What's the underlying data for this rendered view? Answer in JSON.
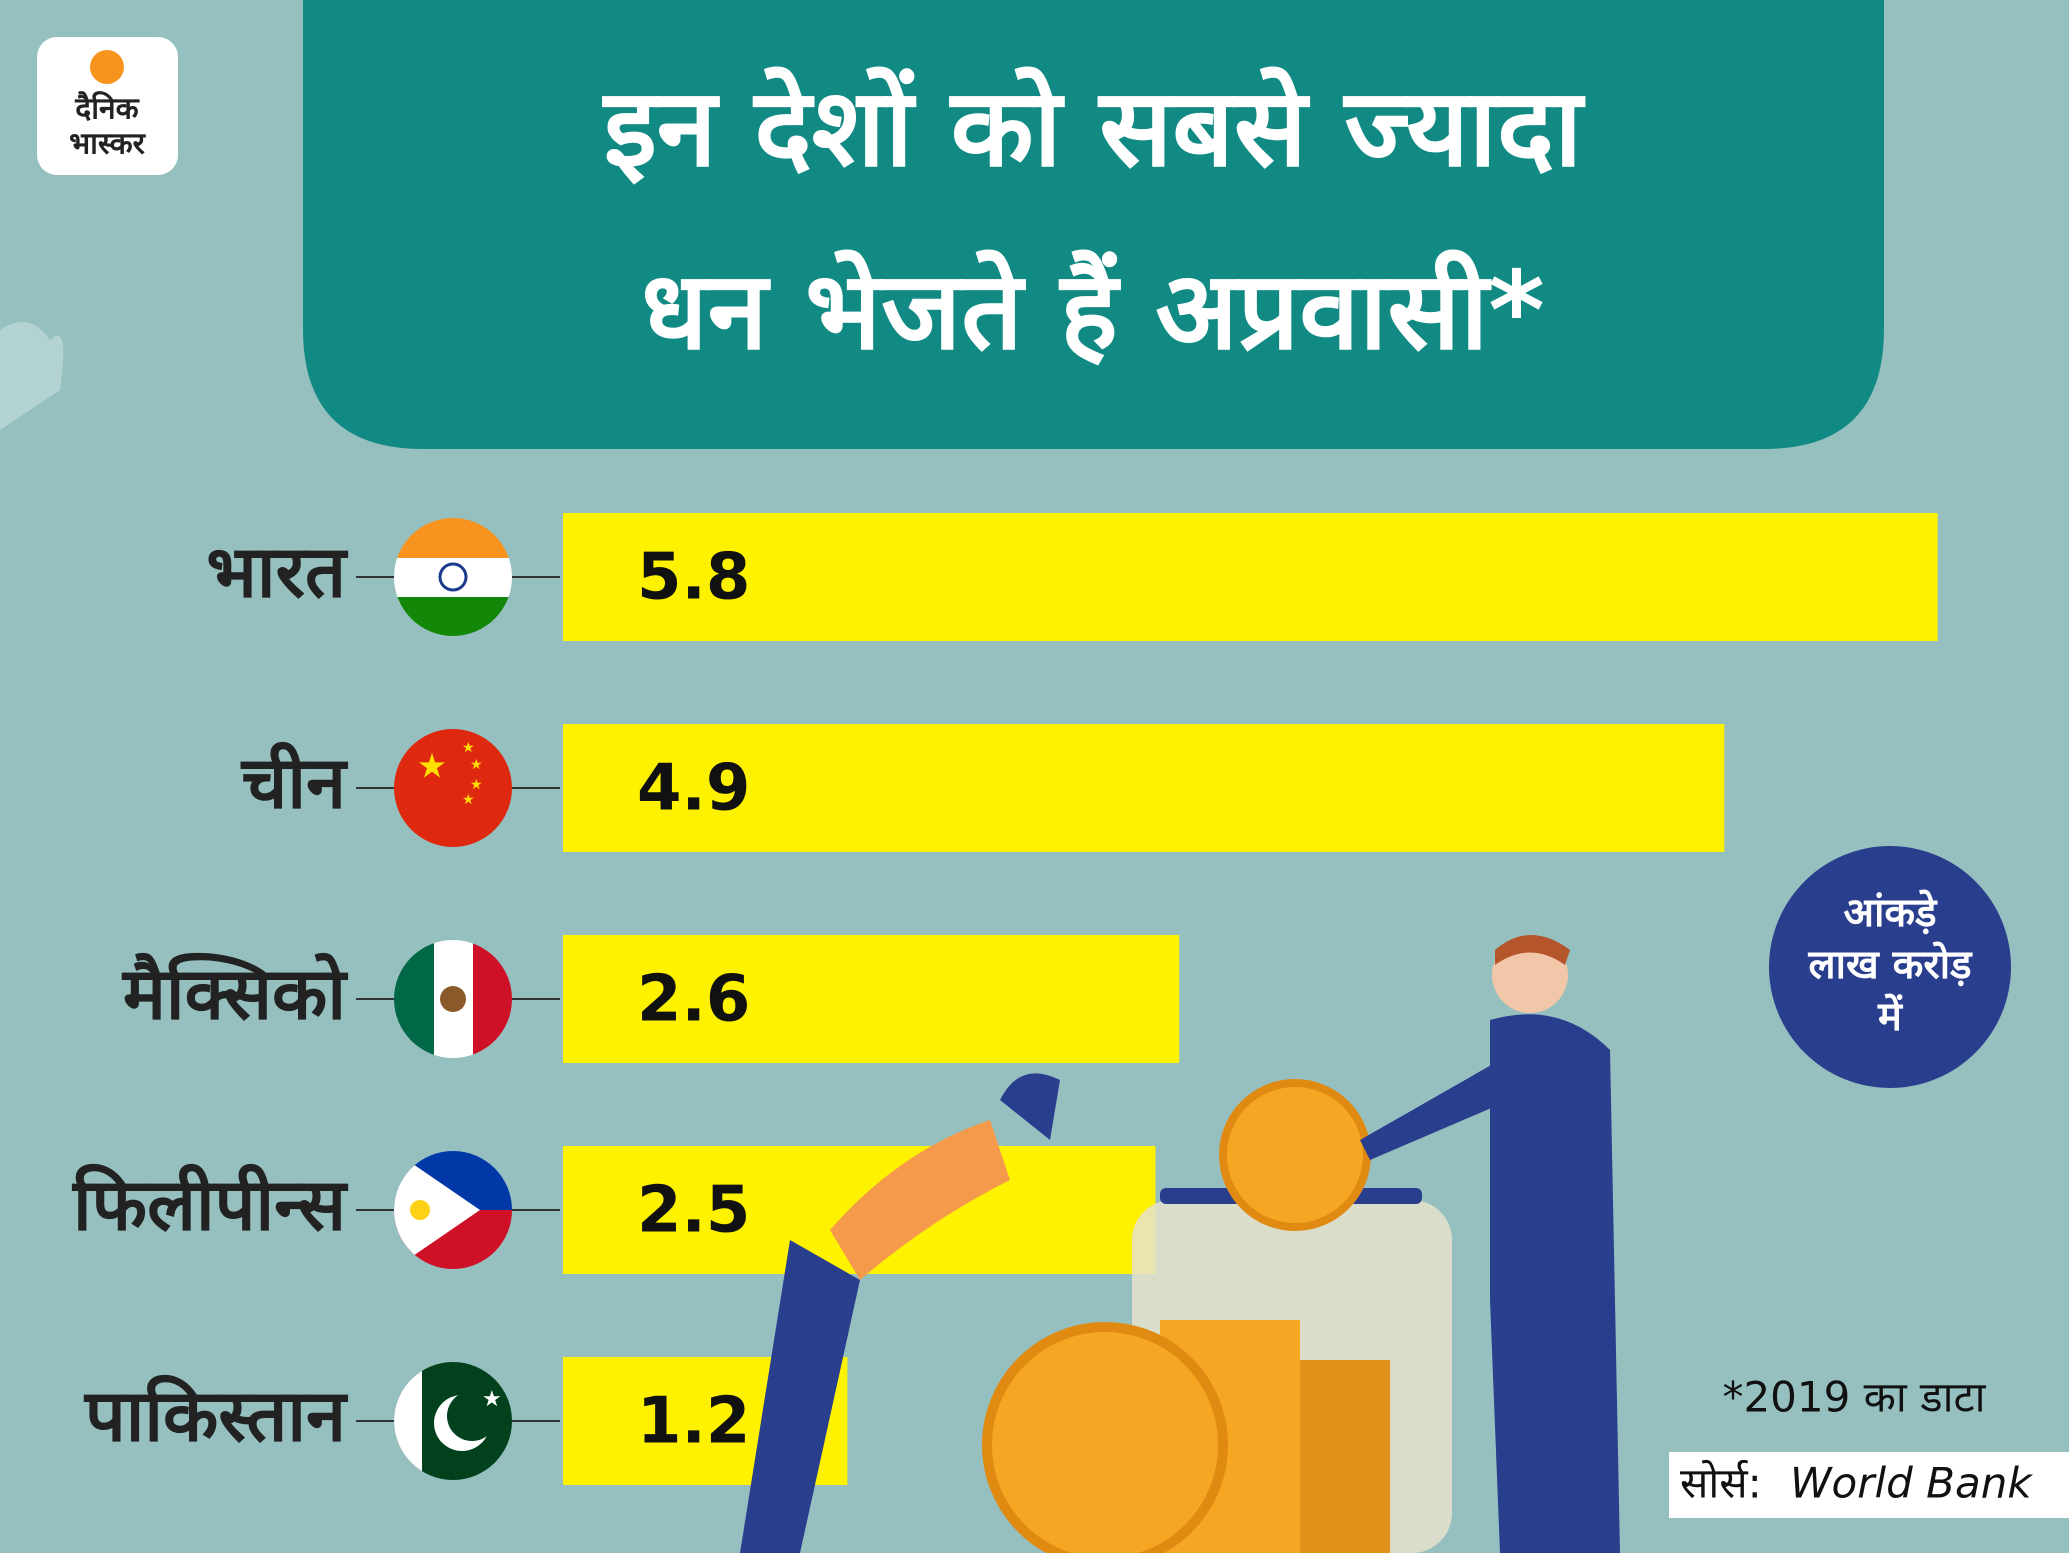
{
  "logo": [
    "दैनिक",
    "भास्कर"
  ],
  "chart_data": {
    "type": "bar",
    "orientation": "horizontal",
    "title": [
      "इन देशों को सबसे ज्यादा",
      "धन भेजते हैं अप्रवासी*"
    ],
    "categories": [
      "भारत",
      "चीन",
      "मैक्सिको",
      "फिलीपीन्स",
      "पाकिस्तान"
    ],
    "values": [
      5.8,
      4.9,
      2.6,
      2.5,
      1.2
    ],
    "color": "#fff200",
    "unit_note": [
      "आंकड़े",
      "लाख करोड़",
      "में"
    ],
    "footnote": "*2019 का डाटा",
    "source_label": "सोर्स:",
    "source": "World Bank"
  }
}
